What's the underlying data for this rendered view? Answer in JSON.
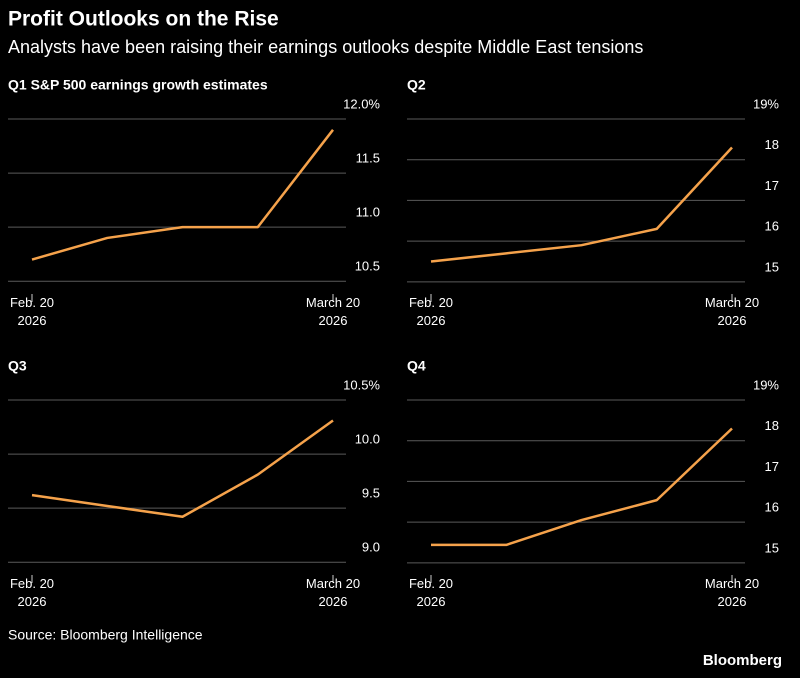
{
  "title": "Profit Outlooks on the Rise",
  "subtitle": "Analysts have been raising their earnings outlooks despite Middle East tensions",
  "source": "Source: Bloomberg Intelligence",
  "brand": "Bloomberg",
  "chart_data": [
    {
      "type": "line",
      "title": "Q1 S&P 500 earnings growth estimates",
      "categories": [
        "Feb. 20\n2026",
        null,
        null,
        null,
        "March 20\n2026"
      ],
      "values": [
        10.7,
        10.9,
        11.0,
        11.0,
        11.9
      ],
      "color": "#f5a24b",
      "ylim": [
        10.4,
        12.0
      ],
      "yticks": [
        {
          "value": 12,
          "label": "12.0%"
        },
        11.5,
        {
          "value": 11,
          "label": "11.0"
        },
        10.5
      ],
      "grid": true
    },
    {
      "type": "line",
      "title": "Q2",
      "categories": [
        "Feb. 20\n2026",
        null,
        null,
        null,
        "March 20\n2026"
      ],
      "values": [
        15.5,
        15.7,
        15.9,
        16.3,
        18.3
      ],
      "color": "#f5a24b",
      "ylim": [
        14.75,
        19
      ],
      "yticks": [
        {
          "value": 19,
          "label": "19%"
        },
        18,
        17,
        16,
        15
      ],
      "grid": true
    },
    {
      "type": "line",
      "title": "Q3",
      "categories": [
        "Feb. 20\n2026",
        null,
        null,
        null,
        "March 20\n2026"
      ],
      "values": [
        9.62,
        9.52,
        9.42,
        9.81,
        10.31
      ],
      "color": "#f5a24b",
      "ylim": [
        8.9,
        10.5
      ],
      "yticks": [
        {
          "value": 10.5,
          "label": "10.5%"
        },
        {
          "value": 10,
          "label": "10.0"
        },
        9.5,
        {
          "value": 9,
          "label": "9.0"
        }
      ],
      "grid": true
    },
    {
      "type": "line",
      "title": "Q4",
      "categories": [
        "Feb. 20\n2026",
        null,
        null,
        null,
        "March 20\n2026"
      ],
      "values": [
        15.44,
        15.44,
        16.05,
        16.54,
        18.3
      ],
      "color": "#f5a24b",
      "ylim": [
        14.75,
        19
      ],
      "yticks": [
        {
          "value": 19,
          "label": "19%"
        },
        18,
        17,
        16,
        15
      ],
      "grid": true
    }
  ]
}
